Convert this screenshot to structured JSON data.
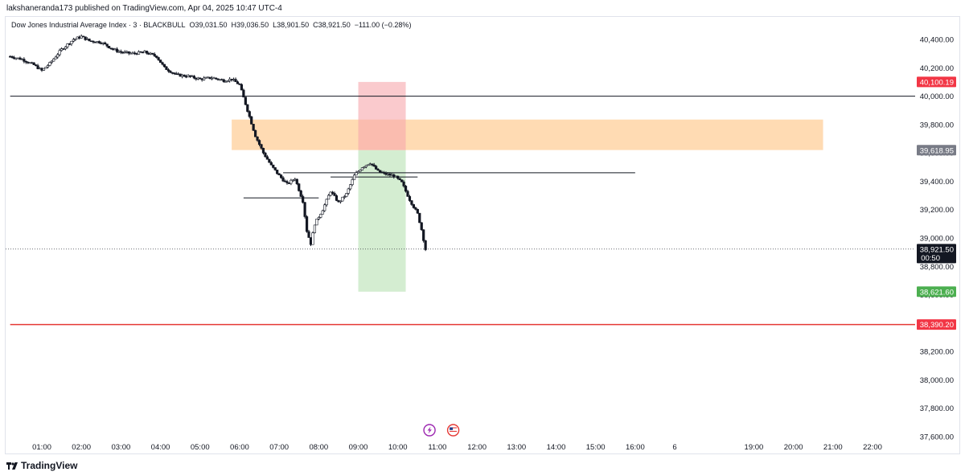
{
  "published_line": "lakshaneranda173 published on TradingView.com, Apr 04, 2025 10:47 UTC-4",
  "legend": {
    "symbol": "Dow Jones Industrial Average Index · 3 · BLACKBULL",
    "open": "O39,031.50",
    "high": "H39,036.50",
    "low": "L38,901.50",
    "close": "C38,921.50",
    "change": "−111.00 (−0.28%)"
  },
  "footer": {
    "brand": "TradingView"
  },
  "colors": {
    "up": "#131722",
    "down": "#131722",
    "stop_zone": "#f7a6ab",
    "target_zone": "#b7e1b2",
    "supply_zone": "#ffcf99",
    "red_line": "#e53935",
    "label_red": "#f23645",
    "label_gray": "#787b86",
    "label_green": "#4caf50",
    "label_black": "#131722"
  },
  "chart_data": {
    "type": "candlestick",
    "symbol": "Dow Jones Industrial Average Index",
    "interval": "3",
    "y_ticks": [
      "40,400.00",
      "40,200.00",
      "40,000.00",
      "39,800.00",
      "39,600.00",
      "39,400.00",
      "39,200.00",
      "39,000.00",
      "38,800.00",
      "38,600.00",
      "38,400.00",
      "38,200.00",
      "38,000.00",
      "37,800.00",
      "37,600.00"
    ],
    "y_tick_values": [
      40400,
      40200,
      40000,
      39800,
      39600,
      39400,
      39200,
      39000,
      38800,
      38600,
      38400,
      38200,
      38000,
      37800,
      37600
    ],
    "ylim": [
      37600,
      40500
    ],
    "x_ticks": [
      "01:00",
      "02:00",
      "03:00",
      "04:00",
      "05:00",
      "06:00",
      "07:00",
      "08:00",
      "09:00",
      "10:00",
      "11:00",
      "12:00",
      "13:00",
      "14:00",
      "15:00",
      "16:00",
      "6",
      "19:00",
      "20:00",
      "21:00",
      "22:00"
    ],
    "x_tick_hours": [
      1,
      2,
      3,
      4,
      5,
      6,
      7,
      8,
      9,
      10,
      11,
      12,
      13,
      14,
      15,
      16,
      17,
      19,
      20,
      21,
      22
    ],
    "xlim_hours": [
      0.2,
      22.5
    ],
    "price_path": [
      [
        0.2,
        40280
      ],
      [
        0.5,
        40260
      ],
      [
        0.8,
        40220
      ],
      [
        1.0,
        40180
      ],
      [
        1.2,
        40230
      ],
      [
        1.5,
        40330
      ],
      [
        1.8,
        40400
      ],
      [
        2.0,
        40420
      ],
      [
        2.2,
        40390
      ],
      [
        2.5,
        40380
      ],
      [
        2.8,
        40330
      ],
      [
        3.0,
        40310
      ],
      [
        3.3,
        40300
      ],
      [
        3.6,
        40310
      ],
      [
        3.9,
        40280
      ],
      [
        4.1,
        40200
      ],
      [
        4.4,
        40150
      ],
      [
        4.7,
        40140
      ],
      [
        5.0,
        40120
      ],
      [
        5.3,
        40130
      ],
      [
        5.6,
        40110
      ],
      [
        5.8,
        40120
      ],
      [
        6.0,
        40080
      ],
      [
        6.2,
        39900
      ],
      [
        6.4,
        39720
      ],
      [
        6.6,
        39600
      ],
      [
        6.8,
        39510
      ],
      [
        7.0,
        39440
      ],
      [
        7.2,
        39380
      ],
      [
        7.4,
        39420
      ],
      [
        7.6,
        39260
      ],
      [
        7.7,
        39050
      ],
      [
        7.8,
        38960
      ],
      [
        7.9,
        39100
      ],
      [
        8.1,
        39200
      ],
      [
        8.3,
        39330
      ],
      [
        8.5,
        39250
      ],
      [
        8.7,
        39310
      ],
      [
        8.9,
        39440
      ],
      [
        9.1,
        39500
      ],
      [
        9.3,
        39530
      ],
      [
        9.5,
        39470
      ],
      [
        9.7,
        39450
      ],
      [
        9.9,
        39440
      ],
      [
        10.1,
        39390
      ],
      [
        10.3,
        39270
      ],
      [
        10.5,
        39170
      ],
      [
        10.6,
        39060
      ],
      [
        10.7,
        38920
      ]
    ],
    "last_price": {
      "value": 38921.5,
      "label": "38,921.50",
      "countdown": "00:50"
    },
    "horizontal_lines": [
      {
        "value": 40000,
        "color": "#131722",
        "from_hour": 0.2
      },
      {
        "value": 38390.2,
        "label": "38,390.20",
        "color": "#e53935",
        "from_hour": 0.2
      },
      {
        "value": 39283,
        "color": "#131722",
        "from_hour": 6.1,
        "to_hour": 8.0
      },
      {
        "value": 39460,
        "color": "#131722",
        "from_hour": 7.1,
        "to_hour": 16.0
      },
      {
        "value": 39430,
        "color": "#131722",
        "from_hour": 8.3,
        "to_hour": 10.5
      }
    ],
    "zones": [
      {
        "name": "supply",
        "from_hour": 5.8,
        "to_hour": 20.75,
        "top": 39835,
        "bottom": 39620,
        "color": "#ffcf99"
      },
      {
        "name": "stop",
        "from_hour": 9.0,
        "to_hour": 10.2,
        "top": 40100.19,
        "bottom": 39618.95,
        "color": "#f7a6ab"
      },
      {
        "name": "target",
        "from_hour": 9.0,
        "to_hour": 10.2,
        "top": 39618.95,
        "bottom": 38621.6,
        "color": "#b7e1b2"
      }
    ],
    "price_labels": [
      {
        "value": 40100.19,
        "label": "40,100.19",
        "color": "#f23645"
      },
      {
        "value": 39618.95,
        "label": "39,618.95",
        "color": "#787b86"
      },
      {
        "value": 38621.6,
        "label": "38,621.60",
        "color": "#4caf50"
      },
      {
        "value": 38390.2,
        "label": "38,390.20",
        "color": "#f23645"
      }
    ],
    "event_icons": [
      {
        "hour": 10.8,
        "name": "lightning-event-icon",
        "color": "#9c27b0"
      },
      {
        "hour": 11.4,
        "name": "us-flag-event-icon",
        "color": "#e53935"
      }
    ]
  }
}
